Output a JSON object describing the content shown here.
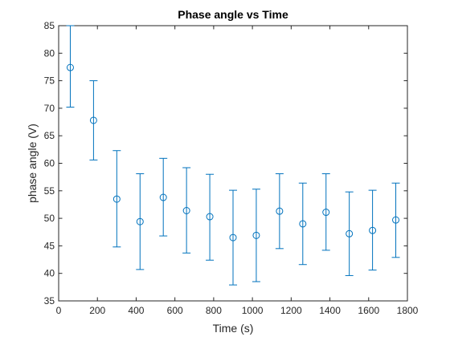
{
  "chart_data": {
    "type": "scatter",
    "title": "Phase angle vs Time",
    "xlabel": "Time (s)",
    "ylabel": "phase angle (V)",
    "xlim": [
      0,
      1800
    ],
    "ylim": [
      35,
      85
    ],
    "xticks": [
      "0",
      "200",
      "400",
      "600",
      "800",
      "1000",
      "1200",
      "1400",
      "1600",
      "1800"
    ],
    "yticks": [
      "35",
      "40",
      "45",
      "50",
      "55",
      "60",
      "65",
      "70",
      "75",
      "80",
      "85"
    ],
    "grid": false,
    "marker": "circle",
    "error_bars": true,
    "series": [
      {
        "color": "#0072BD",
        "points": [
          {
            "x": 60,
            "y": 77.4,
            "lower": 70.2,
            "upper": 85.0
          },
          {
            "x": 180,
            "y": 67.8,
            "lower": 60.6,
            "upper": 75.0
          },
          {
            "x": 300,
            "y": 53.5,
            "lower": 44.8,
            "upper": 62.3
          },
          {
            "x": 420,
            "y": 49.4,
            "lower": 40.7,
            "upper": 58.1
          },
          {
            "x": 540,
            "y": 53.8,
            "lower": 46.8,
            "upper": 60.9
          },
          {
            "x": 660,
            "y": 51.4,
            "lower": 43.7,
            "upper": 59.2
          },
          {
            "x": 780,
            "y": 50.3,
            "lower": 42.4,
            "upper": 58.0
          },
          {
            "x": 900,
            "y": 46.5,
            "lower": 37.9,
            "upper": 55.1
          },
          {
            "x": 1020,
            "y": 46.9,
            "lower": 38.5,
            "upper": 55.3
          },
          {
            "x": 1140,
            "y": 51.3,
            "lower": 44.5,
            "upper": 58.1
          },
          {
            "x": 1260,
            "y": 49.0,
            "lower": 41.6,
            "upper": 56.4
          },
          {
            "x": 1380,
            "y": 51.1,
            "lower": 44.2,
            "upper": 58.1
          },
          {
            "x": 1500,
            "y": 47.2,
            "lower": 39.6,
            "upper": 54.8
          },
          {
            "x": 1620,
            "y": 47.8,
            "lower": 40.6,
            "upper": 55.1
          },
          {
            "x": 1740,
            "y": 49.7,
            "lower": 42.9,
            "upper": 56.4
          }
        ]
      }
    ]
  }
}
